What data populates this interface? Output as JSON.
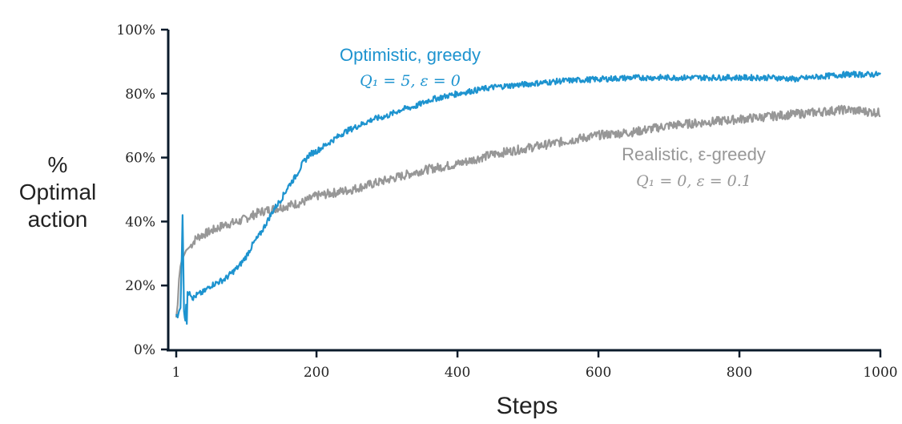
{
  "chart_data": {
    "type": "line",
    "title": "",
    "xlabel": "Steps",
    "ylabel": [
      "%",
      "Optimal",
      "action"
    ],
    "xlim": [
      1,
      1000
    ],
    "ylim": [
      0,
      100
    ],
    "x_ticks": [
      1,
      200,
      400,
      600,
      800,
      1000
    ],
    "y_ticks": [
      0,
      20,
      40,
      60,
      80,
      100
    ],
    "x_tick_labels": [
      "1",
      "200",
      "400",
      "600",
      "800",
      "1000"
    ],
    "y_tick_labels": [
      "0%",
      "20%",
      "40%",
      "60%",
      "80%",
      "100%"
    ],
    "grid": false,
    "colors": {
      "optimistic": "#1d93cf",
      "realistic": "#979797",
      "axis": "#0b1b2b"
    },
    "series": [
      {
        "name": "Optimistic, greedy",
        "formula": "Q₁ = 5,  ε = 0",
        "color": "#1d93cf",
        "x": [
          1,
          3,
          5,
          7,
          9,
          10,
          11,
          12,
          13,
          14,
          15,
          16,
          17,
          18,
          20,
          25,
          30,
          40,
          50,
          60,
          70,
          80,
          90,
          100,
          110,
          120,
          130,
          140,
          150,
          160,
          170,
          180,
          190,
          200,
          220,
          240,
          260,
          280,
          300,
          320,
          340,
          360,
          380,
          400,
          450,
          500,
          550,
          600,
          650,
          700,
          750,
          800,
          850,
          880,
          900,
          950,
          1000
        ],
        "y": [
          11,
          10,
          12,
          13,
          30,
          42,
          28,
          12,
          10,
          9,
          14,
          8,
          18,
          17,
          18,
          16,
          17,
          18,
          20,
          21,
          22,
          24,
          26,
          29,
          33,
          36,
          40,
          44,
          47,
          51,
          54,
          58,
          61,
          62,
          65,
          68,
          70,
          72,
          73,
          75,
          76,
          78,
          79,
          80,
          82,
          83,
          84,
          84.5,
          85,
          85,
          85,
          85,
          85,
          84.5,
          85,
          86,
          86
        ]
      },
      {
        "name": "Realistic, ε-greedy",
        "formula": "Q₁ = 0,  ε = 0.1",
        "color": "#979797",
        "x": [
          1,
          3,
          5,
          7,
          9,
          11,
          13,
          15,
          20,
          30,
          40,
          50,
          60,
          70,
          80,
          90,
          100,
          120,
          140,
          160,
          180,
          200,
          250,
          300,
          350,
          400,
          450,
          500,
          550,
          600,
          650,
          700,
          750,
          800,
          850,
          900,
          950,
          1000
        ],
        "y": [
          10,
          14,
          22,
          26,
          28,
          29,
          30,
          31,
          32,
          35,
          36,
          37,
          38,
          39,
          39.5,
          40,
          41,
          43,
          44,
          45,
          46,
          48,
          50,
          53,
          56,
          58,
          61,
          63,
          65,
          67,
          68,
          70,
          71,
          72,
          73,
          74,
          75,
          74
        ]
      }
    ]
  }
}
